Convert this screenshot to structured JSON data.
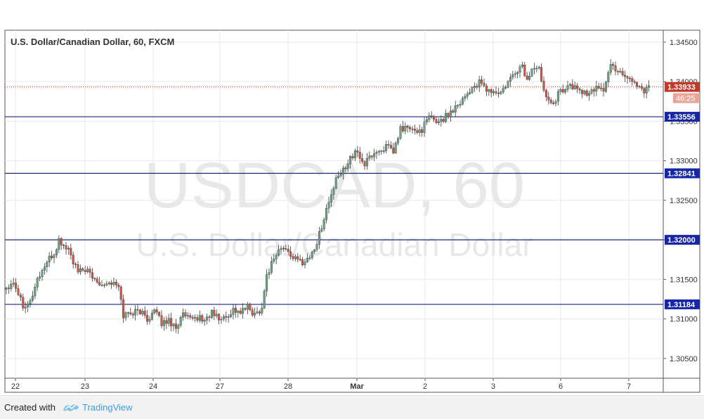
{
  "chart_data": {
    "type": "candlestick",
    "title": "U.S. Dollar/Canadian Dollar, 60, FXCM",
    "watermark": {
      "symbol": "USDCAD, 60",
      "description": "U.S. Dollar/Canadian Dollar"
    },
    "ylim": [
      1.3025,
      1.3465
    ],
    "y_ticks": [
      "1.30500",
      "1.31000",
      "1.31500",
      "1.32000",
      "1.32500",
      "1.33000",
      "1.33500",
      "1.34000",
      "1.34500"
    ],
    "x_labels": [
      "22",
      "23",
      "24",
      "27",
      "28",
      "Mar",
      "2",
      "3",
      "6",
      "7"
    ],
    "horizontal_levels": [
      {
        "value": 1.33556,
        "label": "1.33556"
      },
      {
        "value": 1.32841,
        "label": "1.32841"
      },
      {
        "value": 1.32,
        "label": "1.32000"
      },
      {
        "value": 1.31184,
        "label": "1.31184"
      }
    ],
    "last_price": {
      "value": 1.33933,
      "label": "1.33933",
      "countdown": "46:25"
    },
    "candle_anchors": [
      [
        0,
        1.314
      ],
      [
        3,
        1.3148
      ],
      [
        7,
        1.3118
      ],
      [
        10,
        1.3122
      ],
      [
        13,
        1.315
      ],
      [
        17,
        1.3172
      ],
      [
        20,
        1.3182
      ],
      [
        22,
        1.3199
      ],
      [
        24,
        1.3192
      ],
      [
        26,
        1.3188
      ],
      [
        28,
        1.3172
      ],
      [
        30,
        1.3158
      ],
      [
        33,
        1.3163
      ],
      [
        36,
        1.3152
      ],
      [
        40,
        1.3145
      ],
      [
        44,
        1.3146
      ],
      [
        47,
        1.314
      ],
      [
        49,
        1.3105
      ],
      [
        52,
        1.3108
      ],
      [
        56,
        1.311
      ],
      [
        59,
        1.31
      ],
      [
        62,
        1.311
      ],
      [
        65,
        1.3095
      ],
      [
        68,
        1.3098
      ],
      [
        71,
        1.309
      ],
      [
        74,
        1.3105
      ],
      [
        77,
        1.3098
      ],
      [
        80,
        1.3102
      ],
      [
        83,
        1.3098
      ],
      [
        86,
        1.3108
      ],
      [
        89,
        1.31
      ],
      [
        92,
        1.3102
      ],
      [
        95,
        1.3112
      ],
      [
        98,
        1.3108
      ],
      [
        101,
        1.3115
      ],
      [
        104,
        1.3105
      ],
      [
        107,
        1.3115
      ],
      [
        109,
        1.3155
      ],
      [
        112,
        1.3178
      ],
      [
        115,
        1.319
      ],
      [
        118,
        1.3185
      ],
      [
        121,
        1.3175
      ],
      [
        124,
        1.3172
      ],
      [
        127,
        1.3178
      ],
      [
        130,
        1.3196
      ],
      [
        132,
        1.3218
      ],
      [
        135,
        1.3248
      ],
      [
        138,
        1.3275
      ],
      [
        141,
        1.3288
      ],
      [
        144,
        1.3305
      ],
      [
        147,
        1.331
      ],
      [
        150,
        1.3295
      ],
      [
        153,
        1.3308
      ],
      [
        156,
        1.3312
      ],
      [
        159,
        1.3318
      ],
      [
        162,
        1.331
      ],
      [
        165,
        1.334
      ],
      [
        168,
        1.3342
      ],
      [
        171,
        1.3336
      ],
      [
        174,
        1.334
      ],
      [
        177,
        1.3355
      ],
      [
        180,
        1.335
      ],
      [
        183,
        1.3353
      ],
      [
        186,
        1.3362
      ],
      [
        189,
        1.3372
      ],
      [
        192,
        1.3382
      ],
      [
        195,
        1.3392
      ],
      [
        198,
        1.3398
      ],
      [
        201,
        1.339
      ],
      [
        204,
        1.3386
      ],
      [
        207,
        1.3385
      ],
      [
        210,
        1.3398
      ],
      [
        213,
        1.3412
      ],
      [
        216,
        1.342
      ],
      [
        218,
        1.34
      ],
      [
        220,
        1.3418
      ],
      [
        223,
        1.3415
      ],
      [
        226,
        1.3382
      ],
      [
        229,
        1.3375
      ],
      [
        232,
        1.3388
      ],
      [
        235,
        1.3395
      ],
      [
        238,
        1.3392
      ],
      [
        241,
        1.3388
      ],
      [
        244,
        1.3382
      ],
      [
        247,
        1.3395
      ],
      [
        250,
        1.339
      ],
      [
        253,
        1.342
      ],
      [
        256,
        1.3415
      ],
      [
        259,
        1.3408
      ],
      [
        262,
        1.3402
      ],
      [
        265,
        1.3393
      ],
      [
        267,
        1.339
      ],
      [
        269,
        1.3393
      ]
    ],
    "colors": {
      "up": "#6ba583",
      "down": "#d75442",
      "wick": "#3a3a3a",
      "level": "#1a237e",
      "level_label_bg": "#1626a6",
      "last_price": "#c0392b",
      "grid": "#e9e9e9",
      "watermark": "#e8e8e8"
    }
  },
  "footer": {
    "created_with": "Created with",
    "brand": "TradingView"
  }
}
